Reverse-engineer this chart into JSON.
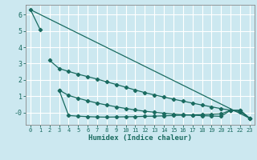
{
  "xlabel": "Humidex (Indice chaleur)",
  "ylabel": "",
  "bg_color": "#cce8f0",
  "grid_color": "#ffffff",
  "line_color": "#1a6b60",
  "xlim": [
    -0.5,
    23.5
  ],
  "ylim": [
    -0.75,
    6.6
  ],
  "xticks": [
    0,
    1,
    2,
    3,
    4,
    5,
    6,
    7,
    8,
    9,
    10,
    11,
    12,
    13,
    14,
    15,
    16,
    17,
    18,
    19,
    20,
    21,
    22,
    23
  ],
  "yticks": [
    0,
    1,
    2,
    3,
    4,
    5,
    6
  ],
  "ytick_labels": [
    "-0",
    "1",
    "2",
    "3",
    "4",
    "5",
    "6"
  ],
  "line1": {
    "x": [
      0,
      1,
      23
    ],
    "y": [
      6.3,
      5.1,
      -0.35
    ]
  },
  "line2": {
    "x": [
      2,
      3,
      4,
      5,
      6,
      7,
      8,
      9,
      10,
      11,
      12,
      13,
      14,
      15,
      16,
      17,
      18,
      19,
      20,
      21,
      22,
      23
    ],
    "y": [
      3.2,
      2.7,
      2.52,
      2.35,
      2.2,
      2.05,
      1.88,
      1.72,
      1.55,
      1.38,
      1.22,
      1.08,
      0.95,
      0.82,
      0.7,
      0.58,
      0.46,
      0.35,
      0.24,
      0.14,
      0.05,
      -0.35
    ]
  },
  "line3": {
    "x": [
      3,
      4,
      5,
      6,
      7,
      8,
      9,
      10,
      11,
      12,
      13,
      14,
      15,
      16,
      17,
      18,
      19,
      20,
      21,
      22,
      23
    ],
    "y": [
      1.38,
      -0.18,
      -0.22,
      -0.25,
      -0.27,
      -0.28,
      -0.27,
      -0.26,
      -0.25,
      -0.23,
      -0.22,
      -0.2,
      -0.18,
      -0.16,
      -0.14,
      -0.12,
      -0.1,
      -0.08,
      0.14,
      0.14,
      -0.35
    ]
  },
  "line4": {
    "x": [
      3,
      4,
      5,
      6,
      7,
      8,
      9,
      10,
      11,
      12,
      13,
      14,
      15,
      16,
      17,
      18,
      19,
      20,
      21,
      22,
      23
    ],
    "y": [
      1.38,
      1.05,
      0.88,
      0.72,
      0.58,
      0.46,
      0.35,
      0.25,
      0.16,
      0.08,
      0.02,
      -0.04,
      -0.09,
      -0.13,
      -0.16,
      -0.19,
      -0.21,
      -0.23,
      0.14,
      0.14,
      -0.35
    ]
  }
}
